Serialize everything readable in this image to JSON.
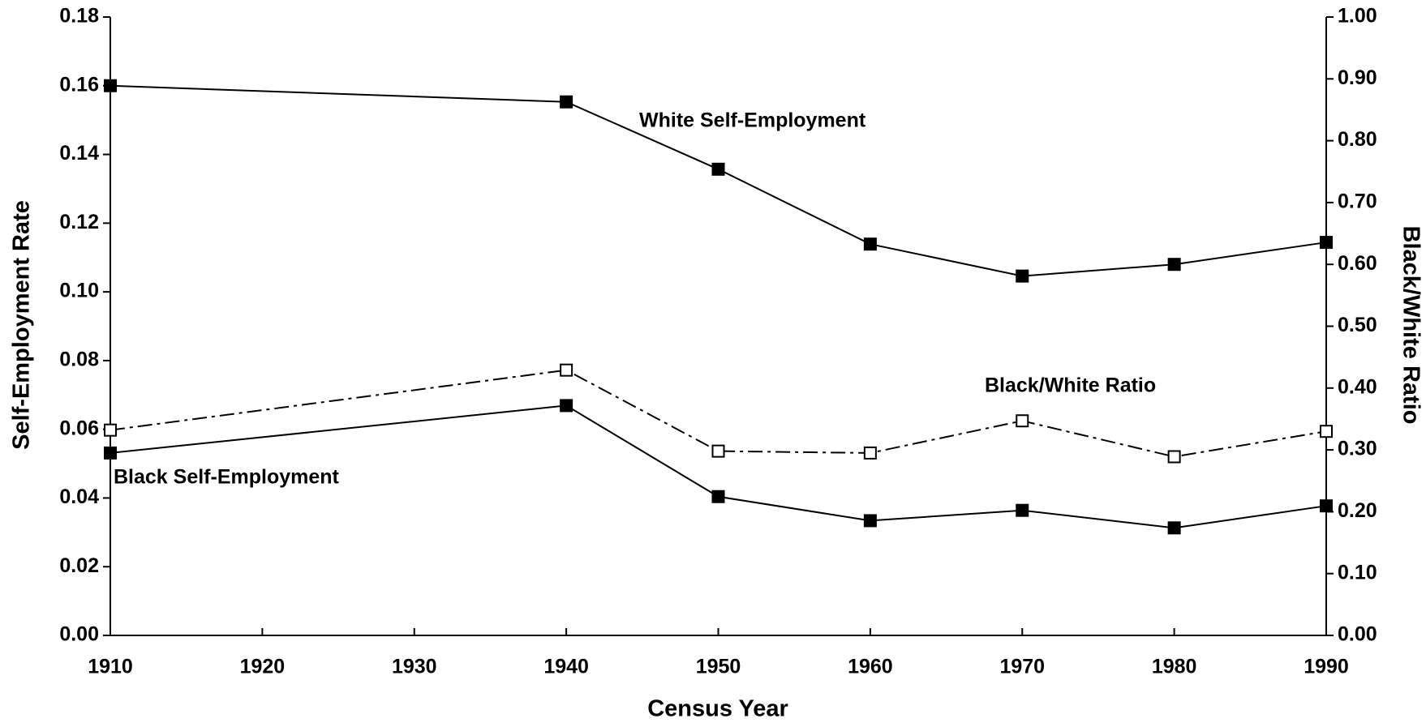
{
  "chart_data": {
    "type": "line",
    "xlabel": "Census Year",
    "ylabel": "Self-Employment Rate",
    "y2label": "Black/White Ratio",
    "x": [
      1910,
      1940,
      1950,
      1960,
      1970,
      1980,
      1990
    ],
    "xlim": [
      1910,
      1990
    ],
    "xticks": [
      1910,
      1920,
      1930,
      1940,
      1950,
      1960,
      1970,
      1980,
      1990
    ],
    "ylim": [
      0,
      0.18
    ],
    "yticks": [
      {
        "value": 0,
        "label": "0.00"
      },
      {
        "value": 0.02,
        "label": "0.02"
      },
      {
        "value": 0.04,
        "label": "0.04"
      },
      {
        "value": 0.06,
        "label": "0.06"
      },
      {
        "value": 0.08,
        "label": "0.08"
      },
      {
        "value": 0.1,
        "label": "0.10"
      },
      {
        "value": 0.12,
        "label": "0.12"
      },
      {
        "value": 0.14,
        "label": "0.14"
      },
      {
        "value": 0.16,
        "label": "0.16"
      },
      {
        "value": 0.18,
        "label": "0.18"
      }
    ],
    "y2lim": [
      0,
      1
    ],
    "y2ticks": [
      {
        "value": 0,
        "label": "0.00"
      },
      {
        "value": 0.1,
        "label": "0.10"
      },
      {
        "value": 0.2,
        "label": "0.20"
      },
      {
        "value": 0.3,
        "label": "0.30"
      },
      {
        "value": 0.4,
        "label": "0.40"
      },
      {
        "value": 0.5,
        "label": "0.50"
      },
      {
        "value": 0.6,
        "label": "0.60"
      },
      {
        "value": 0.7,
        "label": "0.70"
      },
      {
        "value": 0.8,
        "label": "0.80"
      },
      {
        "value": 0.9,
        "label": "0.90"
      },
      {
        "value": 1,
        "label": "1.00"
      }
    ],
    "series": [
      {
        "name": "White Self-Employment",
        "color": "#000000",
        "marker_fill": "#000000",
        "dash": "solid",
        "values": [
          0.16,
          0.1553,
          0.1357,
          0.1139,
          0.1046,
          0.108,
          0.1144
        ]
      },
      {
        "name": "Black Self-Employment",
        "color": "#000000",
        "marker_fill": "#000000",
        "dash": "solid",
        "values": [
          0.0531,
          0.0669,
          0.0404,
          0.0334,
          0.0364,
          0.0313,
          0.0377
        ]
      },
      {
        "name": "Black/White Ratio",
        "color": "#000000",
        "marker_fill": "#ffffff",
        "dash": "dashdot",
        "axis": "y2",
        "values": [
          0.332,
          0.429,
          0.298,
          0.295,
          0.347,
          0.289,
          0.33
        ]
      }
    ]
  }
}
